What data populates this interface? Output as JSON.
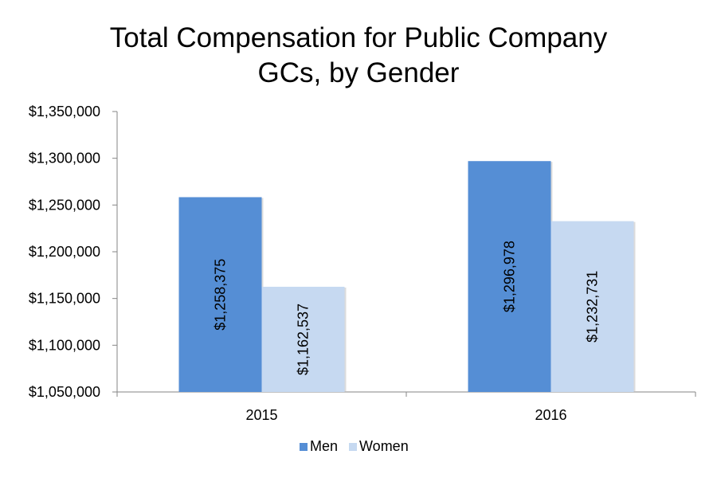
{
  "chart_data": {
    "type": "bar",
    "title_lines": [
      "Total Compensation for Public Company",
      "GCs, by Gender"
    ],
    "categories": [
      "2015",
      "2016"
    ],
    "series": [
      {
        "name": "Men",
        "values": [
          1258375,
          1296978
        ],
        "labels": [
          "$1,258,375",
          "$1,296,978"
        ],
        "color": "#558ed5"
      },
      {
        "name": "Women",
        "values": [
          1162537,
          1232731
        ],
        "labels": [
          "$1,162,537",
          "$1,232,731"
        ],
        "color": "#c6d9f1"
      }
    ],
    "ylim": [
      1050000,
      1350000
    ],
    "yticks": [
      1050000,
      1100000,
      1150000,
      1200000,
      1250000,
      1300000,
      1350000
    ],
    "ytick_labels": [
      "$1,050,000",
      "$1,100,000",
      "$1,150,000",
      "$1,200,000",
      "$1,250,000",
      "$1,300,000",
      "$1,350,000"
    ],
    "legend_position": "bottom",
    "grid": false
  }
}
